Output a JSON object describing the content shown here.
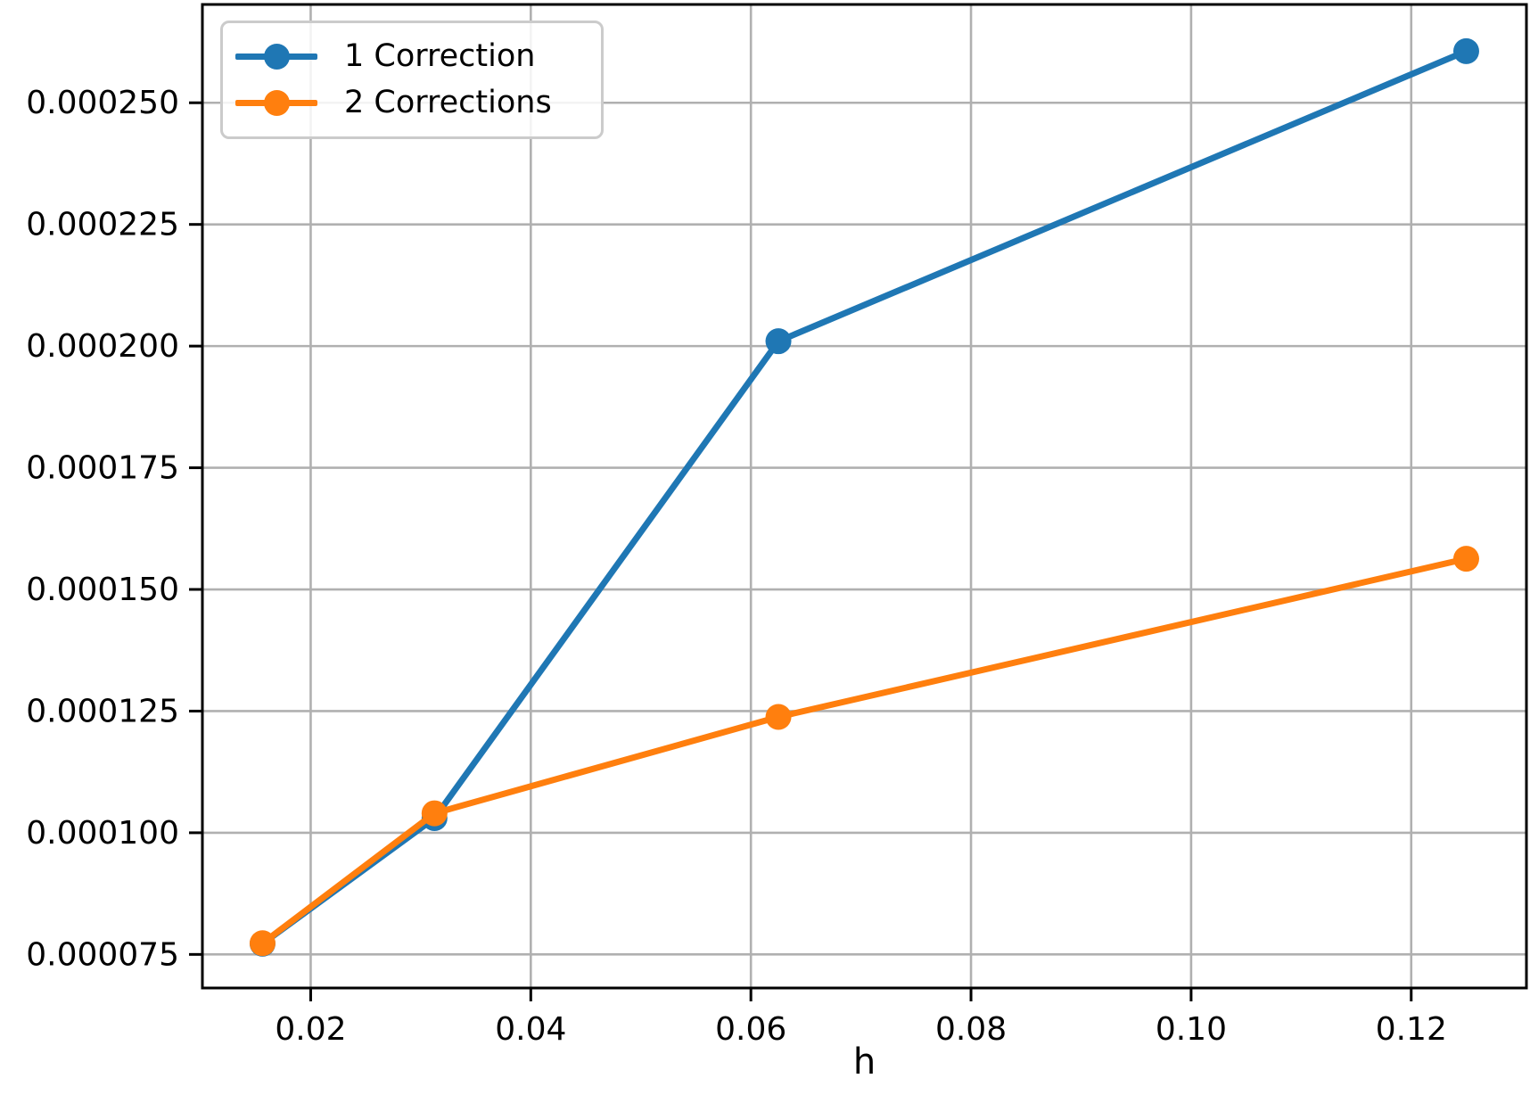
{
  "figure": {
    "background": "#ffffff"
  },
  "legend": {
    "position": "upper left",
    "items": [
      {
        "label": "1 Correction",
        "color": "#1f77b4"
      },
      {
        "label": "2 Corrections",
        "color": "#ff7f0e"
      }
    ]
  },
  "chart_data": {
    "type": "line",
    "title": "",
    "xlabel": "h",
    "ylabel": "",
    "x": [
      0.015625,
      0.03125,
      0.0625,
      0.125
    ],
    "series": [
      {
        "name": "1 Correction",
        "color": "#1f77b4",
        "values": [
          7.72e-05,
          0.000103,
          0.000201,
          0.0002606
        ]
      },
      {
        "name": "2 Corrections",
        "color": "#ff7f0e",
        "values": [
          7.73e-05,
          0.000104,
          0.0001238,
          0.0001563
        ]
      }
    ],
    "xlim": [
      0.01016,
      0.13047
    ],
    "ylim": [
      6.81e-05,
      0.0002702
    ],
    "xticks": {
      "values": [
        0.02,
        0.04,
        0.06,
        0.08,
        0.1,
        0.12
      ],
      "labels": [
        "0.02",
        "0.04",
        "0.06",
        "0.08",
        "0.10",
        "0.12"
      ]
    },
    "yticks": {
      "values": [
        7.5e-05,
        0.0001,
        0.000125,
        0.00015,
        0.000175,
        0.0002,
        0.000225,
        0.00025
      ],
      "labels": [
        "0.000075",
        "0.000100",
        "0.000125",
        "0.000150",
        "0.000175",
        "0.000200",
        "0.000225",
        "0.000250"
      ]
    },
    "grid": true,
    "legend_position": "upper left",
    "colors": {
      "grid": "#b0b0b0",
      "spine": "#000000",
      "tick_label": "#000000"
    }
  }
}
